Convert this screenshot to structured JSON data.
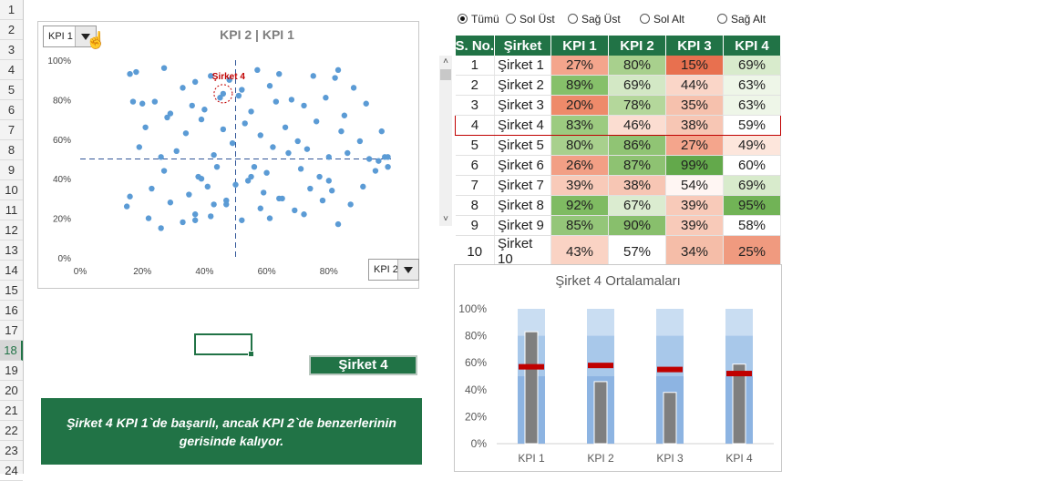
{
  "row_numbers": [
    "1",
    "2",
    "3",
    "4",
    "5",
    "6",
    "7",
    "8",
    "9",
    "10",
    "11",
    "12",
    "13",
    "14",
    "15",
    "16",
    "17",
    "18",
    "19",
    "20",
    "21",
    "22",
    "23",
    "24"
  ],
  "active_row": "18",
  "scatter": {
    "title": "KPI 2 | KPI 1",
    "y_dropdown": "KPI 1",
    "x_dropdown": "KPI 2",
    "highlight_label": "Şirket 4",
    "highlight_color": "#c00000",
    "point_color": "#5b9bd5",
    "y_ticks": [
      "100%",
      "80%",
      "60%",
      "40%",
      "20%",
      "0%"
    ],
    "x_ticks": [
      "0%",
      "20%",
      "40%",
      "60%",
      "80%"
    ]
  },
  "chart_data": [
    {
      "type": "scatter",
      "title": "KPI 2 | KPI 1",
      "xlabel": "",
      "ylabel": "",
      "xlim": [
        0,
        1
      ],
      "ylim": [
        0,
        1
      ],
      "reference_lines": {
        "x": 0.5,
        "y": 0.5
      },
      "highlight": {
        "name": "Şirket 4",
        "x": 0.46,
        "y": 0.83
      },
      "x": [
        0.16,
        0.18,
        0.27,
        0.33,
        0.37,
        0.42,
        0.48,
        0.52,
        0.57,
        0.61,
        0.64,
        0.75,
        0.82,
        0.83,
        0.88,
        0.17,
        0.2,
        0.24,
        0.29,
        0.36,
        0.4,
        0.45,
        0.51,
        0.55,
        0.63,
        0.68,
        0.72,
        0.79,
        0.85,
        0.92,
        0.21,
        0.28,
        0.34,
        0.39,
        0.46,
        0.53,
        0.58,
        0.66,
        0.7,
        0.76,
        0.84,
        0.9,
        0.97,
        0.19,
        0.26,
        0.31,
        0.43,
        0.49,
        0.56,
        0.62,
        0.67,
        0.73,
        0.8,
        0.86,
        0.93,
        0.98,
        0.27,
        0.38,
        0.44,
        0.54,
        0.6,
        0.71,
        0.77,
        0.95,
        0.16,
        0.23,
        0.35,
        0.41,
        0.5,
        0.59,
        0.65,
        0.74,
        0.81,
        0.91,
        0.15,
        0.29,
        0.37,
        0.47,
        0.58,
        0.69,
        0.78,
        0.87,
        0.22,
        0.33,
        0.42,
        0.52,
        0.61,
        0.72,
        0.83,
        0.26,
        0.37,
        0.47,
        0.55,
        0.64,
        0.8,
        0.96,
        0.99,
        0.43,
        0.39,
        0.99
      ],
      "y": [
        0.93,
        0.94,
        0.96,
        0.86,
        0.89,
        0.92,
        0.9,
        0.85,
        0.95,
        0.87,
        0.93,
        0.92,
        0.91,
        0.95,
        0.86,
        0.79,
        0.78,
        0.79,
        0.73,
        0.77,
        0.75,
        0.81,
        0.82,
        0.74,
        0.79,
        0.8,
        0.77,
        0.81,
        0.72,
        0.78,
        0.66,
        0.71,
        0.63,
        0.7,
        0.65,
        0.68,
        0.62,
        0.66,
        0.59,
        0.69,
        0.64,
        0.59,
        0.64,
        0.56,
        0.51,
        0.54,
        0.52,
        0.58,
        0.46,
        0.56,
        0.53,
        0.55,
        0.51,
        0.53,
        0.5,
        0.51,
        0.44,
        0.41,
        0.46,
        0.39,
        0.43,
        0.45,
        0.41,
        0.44,
        0.31,
        0.35,
        0.32,
        0.36,
        0.37,
        0.33,
        0.3,
        0.35,
        0.34,
        0.36,
        0.26,
        0.28,
        0.22,
        0.27,
        0.25,
        0.24,
        0.29,
        0.27,
        0.2,
        0.18,
        0.21,
        0.19,
        0.2,
        0.22,
        0.17,
        0.15,
        0.19,
        0.29,
        0.41,
        0.3,
        0.39,
        0.49,
        0.46,
        0.27,
        0.4,
        0.51
      ]
    },
    {
      "type": "bar",
      "title": "Şirket 4 Ortalamaları",
      "categories": [
        "KPI 1",
        "KPI 2",
        "KPI 3",
        "KPI 4"
      ],
      "ylim": [
        0,
        1
      ],
      "y_ticks": [
        "100%",
        "80%",
        "60%",
        "40%",
        "20%",
        "0%"
      ],
      "series": [
        {
          "name": "Şirket 4",
          "values": [
            0.83,
            0.46,
            0.38,
            0.59
          ]
        },
        {
          "name": "Ortalama",
          "values": [
            0.57,
            0.58,
            0.55,
            0.52
          ]
        }
      ],
      "bands": {
        "light": 1.0,
        "mid": 0.8,
        "dark": 0.5
      },
      "colors": {
        "band_light": "#c9ddf2",
        "band_mid": "#a8c8ea",
        "band_dark": "#8db4e2",
        "bar": "#7f7f7f",
        "marker": "#c00000"
      }
    }
  ],
  "radios": [
    {
      "label": "Tümü",
      "selected": true
    },
    {
      "label": "Sol Üst",
      "selected": false
    },
    {
      "label": "Sağ Üst",
      "selected": false
    },
    {
      "label": "Sol Alt",
      "selected": false
    },
    {
      "label": "Sağ Alt",
      "selected": false
    }
  ],
  "table": {
    "headers": [
      "S. No.",
      "Şirket",
      "KPI 1",
      "KPI 2",
      "KPI 3",
      "KPI 4"
    ],
    "highlight_row": 3,
    "rows": [
      {
        "no": "1",
        "name": "Şirket 1",
        "kpis": [
          "27%",
          "80%",
          "15%",
          "69%"
        ],
        "colors": [
          "#f4a58c",
          "#a8d08d",
          "#e8704f",
          "#d8ebcc"
        ]
      },
      {
        "no": "2",
        "name": "Şirket 2",
        "kpis": [
          "89%",
          "69%",
          "44%",
          "63%"
        ],
        "colors": [
          "#86c06a",
          "#d3e8c5",
          "#fad6c8",
          "#eef6e8"
        ]
      },
      {
        "no": "3",
        "name": "Şirket 3",
        "kpis": [
          "20%",
          "78%",
          "35%",
          "63%"
        ],
        "colors": [
          "#ee8a6a",
          "#b4d79b",
          "#f6c1ad",
          "#eef6e8"
        ]
      },
      {
        "no": "4",
        "name": "Şirket 4",
        "kpis": [
          "83%",
          "46%",
          "38%",
          "59%"
        ],
        "colors": [
          "#9ccb80",
          "#fbddd1",
          "#f7c6b4",
          "#ffffff"
        ]
      },
      {
        "no": "5",
        "name": "Şirket 5",
        "kpis": [
          "80%",
          "86%",
          "27%",
          "49%"
        ],
        "colors": [
          "#a8d08d",
          "#90c474",
          "#f4a58c",
          "#fde6dc"
        ]
      },
      {
        "no": "6",
        "name": "Şirket 6",
        "kpis": [
          "26%",
          "87%",
          "99%",
          "60%"
        ],
        "colors": [
          "#f29f85",
          "#8ec272",
          "#63a94b",
          "#ffffff"
        ]
      },
      {
        "no": "7",
        "name": "Şirket 7",
        "kpis": [
          "39%",
          "38%",
          "54%",
          "69%"
        ],
        "colors": [
          "#f8cab9",
          "#f7c6b4",
          "#fff6f3",
          "#d8ebcc"
        ]
      },
      {
        "no": "8",
        "name": "Şirket 8",
        "kpis": [
          "92%",
          "67%",
          "39%",
          "95%"
        ],
        "colors": [
          "#7fbb62",
          "#dbecd0",
          "#f8cab9",
          "#71b356"
        ]
      },
      {
        "no": "9",
        "name": "Şirket 9",
        "kpis": [
          "85%",
          "90%",
          "39%",
          "58%"
        ],
        "colors": [
          "#94c679",
          "#88bf6c",
          "#f8cab9",
          "#ffffff"
        ]
      },
      {
        "no": "10",
        "name": "Şirket 10",
        "kpis": [
          "43%",
          "57%",
          "34%",
          "25%"
        ],
        "colors": [
          "#fad3c4",
          "#ffffff",
          "#f5bda8",
          "#f09a7f"
        ]
      }
    ]
  },
  "selection_label": "Şirket 4",
  "insight": "Şirket 4  KPI 1`de başarılı, ancak KPI 2`de benzerlerinin gerisinde kalıyor."
}
